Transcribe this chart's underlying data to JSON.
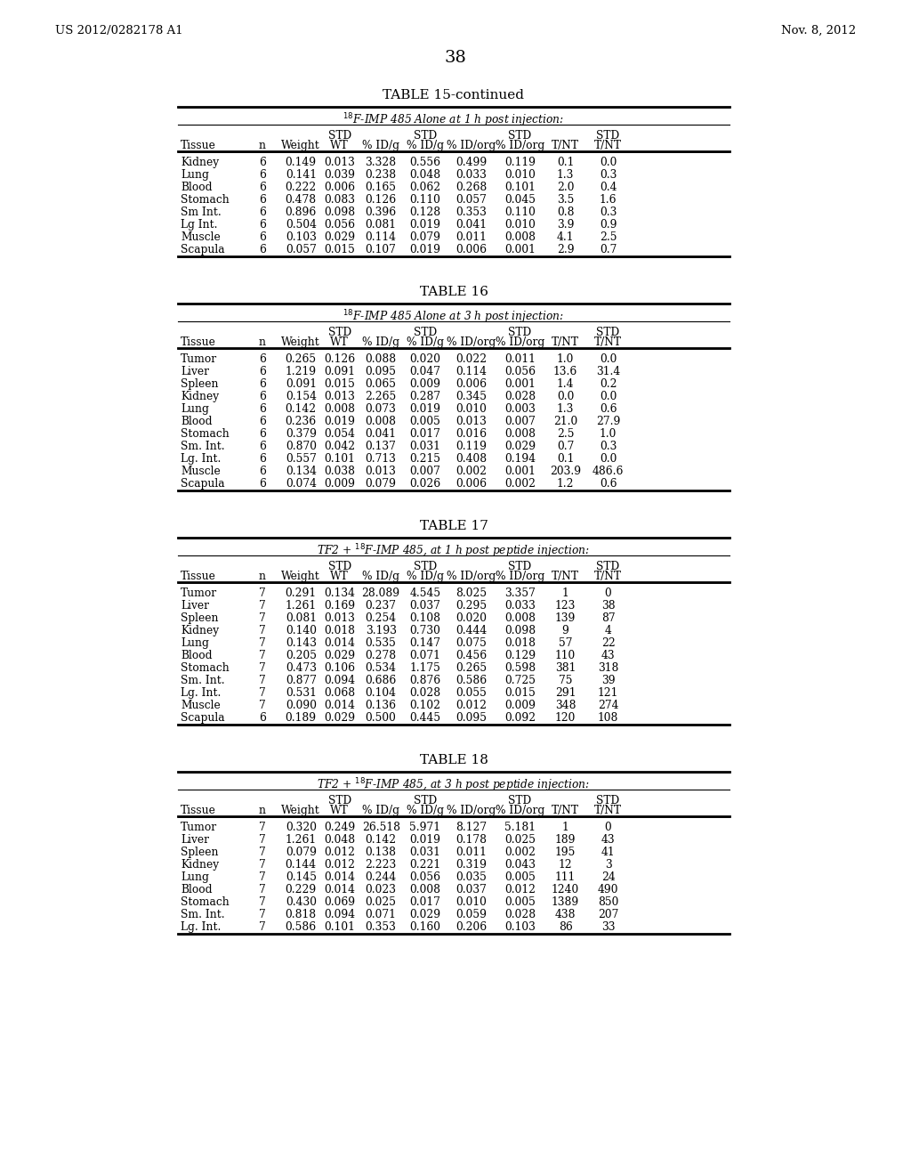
{
  "page_number": "38",
  "patent_left": "US 2012/0282178 A1",
  "patent_right": "Nov. 8, 2012",
  "tables": [
    {
      "title": "TABLE 15-continued",
      "subtitle_pre": "",
      "subtitle_super": "18",
      "subtitle_post": "F-IMP 485 Alone at 1 h post injection:",
      "rows": [
        [
          "Kidney",
          "6",
          "0.149",
          "0.013",
          "3.328",
          "0.556",
          "0.499",
          "0.119",
          "0.1",
          "0.0"
        ],
        [
          "Lung",
          "6",
          "0.141",
          "0.039",
          "0.238",
          "0.048",
          "0.033",
          "0.010",
          "1.3",
          "0.3"
        ],
        [
          "Blood",
          "6",
          "0.222",
          "0.006",
          "0.165",
          "0.062",
          "0.268",
          "0.101",
          "2.0",
          "0.4"
        ],
        [
          "Stomach",
          "6",
          "0.478",
          "0.083",
          "0.126",
          "0.110",
          "0.057",
          "0.045",
          "3.5",
          "1.6"
        ],
        [
          "Sm Int.",
          "6",
          "0.896",
          "0.098",
          "0.396",
          "0.128",
          "0.353",
          "0.110",
          "0.8",
          "0.3"
        ],
        [
          "Lg Int.",
          "6",
          "0.504",
          "0.056",
          "0.081",
          "0.019",
          "0.041",
          "0.010",
          "3.9",
          "0.9"
        ],
        [
          "Muscle",
          "6",
          "0.103",
          "0.029",
          "0.114",
          "0.079",
          "0.011",
          "0.008",
          "4.1",
          "2.5"
        ],
        [
          "Scapula",
          "6",
          "0.057",
          "0.015",
          "0.107",
          "0.019",
          "0.006",
          "0.001",
          "2.9",
          "0.7"
        ]
      ]
    },
    {
      "title": "TABLE 16",
      "subtitle_pre": "",
      "subtitle_super": "18",
      "subtitle_post": "F-IMP 485 Alone at 3 h post injection:",
      "rows": [
        [
          "Tumor",
          "6",
          "0.265",
          "0.126",
          "0.088",
          "0.020",
          "0.022",
          "0.011",
          "1.0",
          "0.0"
        ],
        [
          "Liver",
          "6",
          "1.219",
          "0.091",
          "0.095",
          "0.047",
          "0.114",
          "0.056",
          "13.6",
          "31.4"
        ],
        [
          "Spleen",
          "6",
          "0.091",
          "0.015",
          "0.065",
          "0.009",
          "0.006",
          "0.001",
          "1.4",
          "0.2"
        ],
        [
          "Kidney",
          "6",
          "0.154",
          "0.013",
          "2.265",
          "0.287",
          "0.345",
          "0.028",
          "0.0",
          "0.0"
        ],
        [
          "Lung",
          "6",
          "0.142",
          "0.008",
          "0.073",
          "0.019",
          "0.010",
          "0.003",
          "1.3",
          "0.6"
        ],
        [
          "Blood",
          "6",
          "0.236",
          "0.019",
          "0.008",
          "0.005",
          "0.013",
          "0.007",
          "21.0",
          "27.9"
        ],
        [
          "Stomach",
          "6",
          "0.379",
          "0.054",
          "0.041",
          "0.017",
          "0.016",
          "0.008",
          "2.5",
          "1.0"
        ],
        [
          "Sm. Int.",
          "6",
          "0.870",
          "0.042",
          "0.137",
          "0.031",
          "0.119",
          "0.029",
          "0.7",
          "0.3"
        ],
        [
          "Lg. Int.",
          "6",
          "0.557",
          "0.101",
          "0.713",
          "0.215",
          "0.408",
          "0.194",
          "0.1",
          "0.0"
        ],
        [
          "Muscle",
          "6",
          "0.134",
          "0.038",
          "0.013",
          "0.007",
          "0.002",
          "0.001",
          "203.9",
          "486.6"
        ],
        [
          "Scapula",
          "6",
          "0.074",
          "0.009",
          "0.079",
          "0.026",
          "0.006",
          "0.002",
          "1.2",
          "0.6"
        ]
      ]
    },
    {
      "title": "TABLE 17",
      "subtitle_pre": "TF2 + ",
      "subtitle_super": "18",
      "subtitle_post": "F-IMP 485, at 1 h post peptide injection:",
      "rows": [
        [
          "Tumor",
          "7",
          "0.291",
          "0.134",
          "28.089",
          "4.545",
          "8.025",
          "3.357",
          "1",
          "0"
        ],
        [
          "Liver",
          "7",
          "1.261",
          "0.169",
          "0.237",
          "0.037",
          "0.295",
          "0.033",
          "123",
          "38"
        ],
        [
          "Spleen",
          "7",
          "0.081",
          "0.013",
          "0.254",
          "0.108",
          "0.020",
          "0.008",
          "139",
          "87"
        ],
        [
          "Kidney",
          "7",
          "0.140",
          "0.018",
          "3.193",
          "0.730",
          "0.444",
          "0.098",
          "9",
          "4"
        ],
        [
          "Lung",
          "7",
          "0.143",
          "0.014",
          "0.535",
          "0.147",
          "0.075",
          "0.018",
          "57",
          "22"
        ],
        [
          "Blood",
          "7",
          "0.205",
          "0.029",
          "0.278",
          "0.071",
          "0.456",
          "0.129",
          "110",
          "43"
        ],
        [
          "Stomach",
          "7",
          "0.473",
          "0.106",
          "0.534",
          "1.175",
          "0.265",
          "0.598",
          "381",
          "318"
        ],
        [
          "Sm. Int.",
          "7",
          "0.877",
          "0.094",
          "0.686",
          "0.876",
          "0.586",
          "0.725",
          "75",
          "39"
        ],
        [
          "Lg. Int.",
          "7",
          "0.531",
          "0.068",
          "0.104",
          "0.028",
          "0.055",
          "0.015",
          "291",
          "121"
        ],
        [
          "Muscle",
          "7",
          "0.090",
          "0.014",
          "0.136",
          "0.102",
          "0.012",
          "0.009",
          "348",
          "274"
        ],
        [
          "Scapula",
          "6",
          "0.189",
          "0.029",
          "0.500",
          "0.445",
          "0.095",
          "0.092",
          "120",
          "108"
        ]
      ]
    },
    {
      "title": "TABLE 18",
      "subtitle_pre": "TF2 + ",
      "subtitle_super": "18",
      "subtitle_post": "F-IMP 485, at 3 h post peptide injection:",
      "rows": [
        [
          "Tumor",
          "7",
          "0.320",
          "0.249",
          "26.518",
          "5.971",
          "8.127",
          "5.181",
          "1",
          "0"
        ],
        [
          "Liver",
          "7",
          "1.261",
          "0.048",
          "0.142",
          "0.019",
          "0.178",
          "0.025",
          "189",
          "43"
        ],
        [
          "Spleen",
          "7",
          "0.079",
          "0.012",
          "0.138",
          "0.031",
          "0.011",
          "0.002",
          "195",
          "41"
        ],
        [
          "Kidney",
          "7",
          "0.144",
          "0.012",
          "2.223",
          "0.221",
          "0.319",
          "0.043",
          "12",
          "3"
        ],
        [
          "Lung",
          "7",
          "0.145",
          "0.014",
          "0.244",
          "0.056",
          "0.035",
          "0.005",
          "111",
          "24"
        ],
        [
          "Blood",
          "7",
          "0.229",
          "0.014",
          "0.023",
          "0.008",
          "0.037",
          "0.012",
          "1240",
          "490"
        ],
        [
          "Stomach",
          "7",
          "0.430",
          "0.069",
          "0.025",
          "0.017",
          "0.010",
          "0.005",
          "1389",
          "850"
        ],
        [
          "Sm. Int.",
          "7",
          "0.818",
          "0.094",
          "0.071",
          "0.029",
          "0.059",
          "0.028",
          "438",
          "207"
        ],
        [
          "Lg. Int.",
          "7",
          "0.586",
          "0.101",
          "0.353",
          "0.160",
          "0.206",
          "0.103",
          "86",
          "33"
        ]
      ]
    }
  ]
}
